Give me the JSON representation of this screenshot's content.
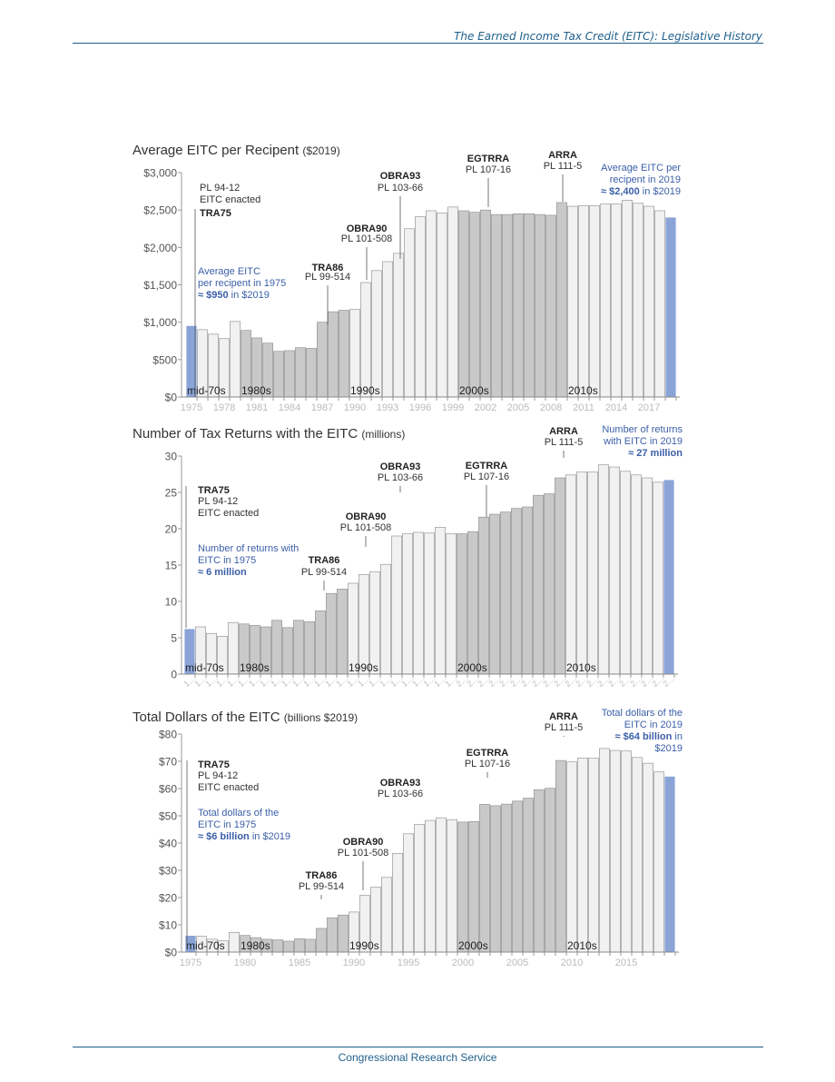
{
  "header": {
    "title": "The Earned Income Tax Credit (EITC): Legislative History"
  },
  "footer": {
    "text": "Congressional Research Service"
  },
  "colors": {
    "highlight": "#8aa4d8",
    "era_gray": "#c9c9c9",
    "era_light": "#f1f1f1",
    "note_blue": "#3b5fa8"
  },
  "chart_data": [
    {
      "type": "bar",
      "title": "Average EITC per Recipent",
      "title_unit": "($2019)",
      "ylim": [
        0,
        3000
      ],
      "yticks": [
        "$0",
        "$500",
        "$1,000",
        "$1,500",
        "$2,000",
        "$2,500",
        "$3,000"
      ],
      "x": [
        1975,
        1976,
        1977,
        1978,
        1979,
        1980,
        1981,
        1982,
        1983,
        1984,
        1985,
        1986,
        1987,
        1988,
        1989,
        1990,
        1991,
        1992,
        1993,
        1994,
        1995,
        1996,
        1997,
        1998,
        1999,
        2000,
        2001,
        2002,
        2003,
        2004,
        2005,
        2006,
        2007,
        2008,
        2009,
        2010,
        2011,
        2012,
        2013,
        2014,
        2015,
        2016,
        2017,
        2018,
        2019
      ],
      "xticks": [
        "1975",
        "1978",
        "1981",
        "1984",
        "1987",
        "1990",
        "1993",
        "1996",
        "1999",
        "2002",
        "2005",
        "2008",
        "2011",
        "2014",
        "2017"
      ],
      "values": [
        950,
        900,
        840,
        780,
        1010,
        890,
        790,
        720,
        610,
        620,
        660,
        650,
        1000,
        1140,
        1160,
        1170,
        1530,
        1690,
        1810,
        1920,
        2250,
        2410,
        2490,
        2460,
        2540,
        2490,
        2470,
        2500,
        2440,
        2440,
        2450,
        2450,
        2440,
        2430,
        2600,
        2550,
        2560,
        2560,
        2580,
        2580,
        2630,
        2590,
        2550,
        2490,
        2400
      ],
      "decades": [
        "mid-70s",
        "1980s",
        "1990s",
        "2000s",
        "2010s"
      ],
      "annotations": [
        {
          "id": "tra75",
          "title": "TRA75",
          "lines": [
            "PL 94-12",
            "EITC enacted"
          ]
        },
        {
          "id": "tra86",
          "title": "TRA86",
          "lines": [
            "PL 99-514"
          ]
        },
        {
          "id": "obra90",
          "title": "OBRA90",
          "lines": [
            "PL 101-508"
          ]
        },
        {
          "id": "obra93",
          "title": "OBRA93",
          "lines": [
            "PL 103-66"
          ]
        },
        {
          "id": "egtrra",
          "title": "EGTRRA",
          "lines": [
            "PL 107-16"
          ]
        },
        {
          "id": "arra",
          "title": "ARRA",
          "lines": [
            "PL 111-5"
          ]
        }
      ],
      "note_start": {
        "l1": "Average EITC",
        "l2": "per recipent in 1975",
        "bold": "≈ $950",
        "tail": "in $2019"
      },
      "note_end": {
        "l1": "Average EITC per",
        "l2": "recipent in 2019",
        "bold": "≈ $2,400",
        "tail": "in $2019"
      }
    },
    {
      "type": "bar",
      "title": "Number of Tax Returns with the EITC",
      "title_unit": "(millions)",
      "ylim": [
        0,
        30
      ],
      "yticks": [
        "0",
        "5",
        "10",
        "15",
        "20",
        "25",
        "30"
      ],
      "x": [
        1975,
        1976,
        1977,
        1978,
        1979,
        1980,
        1981,
        1982,
        1983,
        1984,
        1985,
        1986,
        1987,
        1988,
        1989,
        1990,
        1991,
        1992,
        1993,
        1994,
        1995,
        1996,
        1997,
        1998,
        1999,
        2000,
        2001,
        2002,
        2003,
        2004,
        2005,
        2006,
        2007,
        2008,
        2009,
        2010,
        2011,
        2012,
        2013,
        2014,
        2015,
        2016,
        2017,
        2018,
        2019
      ],
      "xtick_style": "truncated",
      "values": [
        6.2,
        6.5,
        5.6,
        5.2,
        7.1,
        6.9,
        6.7,
        6.5,
        7.4,
        6.4,
        7.4,
        7.2,
        8.7,
        11.1,
        11.7,
        12.5,
        13.7,
        14.1,
        15.1,
        19.0,
        19.3,
        19.5,
        19.4,
        20.2,
        19.3,
        19.3,
        19.6,
        21.6,
        22.0,
        22.3,
        22.8,
        23.0,
        24.6,
        24.8,
        27.0,
        27.4,
        27.8,
        27.8,
        28.8,
        28.5,
        27.9,
        27.4,
        27.0,
        26.4,
        26.7
      ],
      "decades": [
        "mid-70s",
        "1980s",
        "1990s",
        "2000s",
        "2010s"
      ],
      "annotations": [
        {
          "id": "tra75",
          "title": "TRA75",
          "lines": [
            "PL 94-12",
            "EITC enacted"
          ]
        },
        {
          "id": "tra86",
          "title": "TRA86",
          "lines": [
            "PL 99-514"
          ]
        },
        {
          "id": "obra90",
          "title": "OBRA90",
          "lines": [
            "PL 101-508"
          ]
        },
        {
          "id": "obra93",
          "title": "OBRA93",
          "lines": [
            "PL 103-66"
          ]
        },
        {
          "id": "egtrra",
          "title": "EGTRRA",
          "lines": [
            "PL 107-16"
          ]
        },
        {
          "id": "arra",
          "title": "ARRA",
          "lines": [
            "PL 111-5"
          ]
        }
      ],
      "note_start": {
        "l1": "Number of returns with",
        "l2": "EITC in 1975",
        "bold": "≈ 6 million",
        "tail": ""
      },
      "note_end": {
        "l1": "Number of returns",
        "l2": "with EITC in 2019",
        "bold": "≈ 27 million",
        "tail": ""
      }
    },
    {
      "type": "bar",
      "title": "Total Dollars of the EITC",
      "title_unit": "(billions $2019)",
      "ylim": [
        0,
        80
      ],
      "yticks": [
        "$0",
        "$10",
        "$20",
        "$30",
        "$40",
        "$50",
        "$60",
        "$70",
        "$80"
      ],
      "x": [
        1975,
        1976,
        1977,
        1978,
        1979,
        1980,
        1981,
        1982,
        1983,
        1984,
        1985,
        1986,
        1987,
        1988,
        1989,
        1990,
        1991,
        1992,
        1993,
        1994,
        1995,
        1996,
        1997,
        1998,
        1999,
        2000,
        2001,
        2002,
        2003,
        2004,
        2005,
        2006,
        2007,
        2008,
        2009,
        2010,
        2011,
        2012,
        2013,
        2014,
        2015,
        2016,
        2017,
        2018,
        2019
      ],
      "xticks": [
        "1975",
        "1980",
        "1985",
        "1990",
        "1995",
        "2000",
        "2005",
        "2010",
        "2015"
      ],
      "values": [
        6.0,
        5.8,
        4.7,
        4.1,
        7.2,
        6.1,
        5.3,
        4.7,
        4.5,
        4.0,
        4.9,
        4.7,
        8.7,
        12.6,
        13.6,
        14.7,
        20.8,
        23.8,
        27.4,
        36.2,
        43.4,
        46.8,
        48.3,
        49.3,
        48.6,
        47.7,
        47.9,
        54.2,
        53.7,
        54.3,
        55.4,
        56.5,
        59.6,
        60.1,
        70.3,
        69.8,
        71.2,
        71.1,
        74.7,
        74.0,
        73.8,
        71.4,
        69.3,
        66.1,
        64.4
      ],
      "decades": [
        "mid-70s",
        "1980s",
        "1990s",
        "2000s",
        "2010s"
      ],
      "annotations": [
        {
          "id": "tra75",
          "title": "TRA75",
          "lines": [
            "PL 94-12",
            "EITC enacted"
          ]
        },
        {
          "id": "tra86",
          "title": "TRA86",
          "lines": [
            "PL 99-514"
          ]
        },
        {
          "id": "obra90",
          "title": "OBRA90",
          "lines": [
            "PL 101-508"
          ]
        },
        {
          "id": "obra93",
          "title": "OBRA93",
          "lines": [
            "PL 103-66"
          ]
        },
        {
          "id": "egtrra",
          "title": "EGTRRA",
          "lines": [
            "PL 107-16"
          ]
        },
        {
          "id": "arra",
          "title": "ARRA",
          "lines": [
            "PL 111-5"
          ]
        }
      ],
      "note_start": {
        "l1": "Total dollars of the",
        "l2": "EITC in 1975",
        "bold": "≈ $6 billion",
        "tail": "in $2019"
      },
      "note_end": {
        "l1": "Total dollars of the",
        "l2": "EITC in 2019",
        "bold": "≈ $64 billion",
        "tail": "in",
        "l4": "$2019"
      }
    }
  ]
}
